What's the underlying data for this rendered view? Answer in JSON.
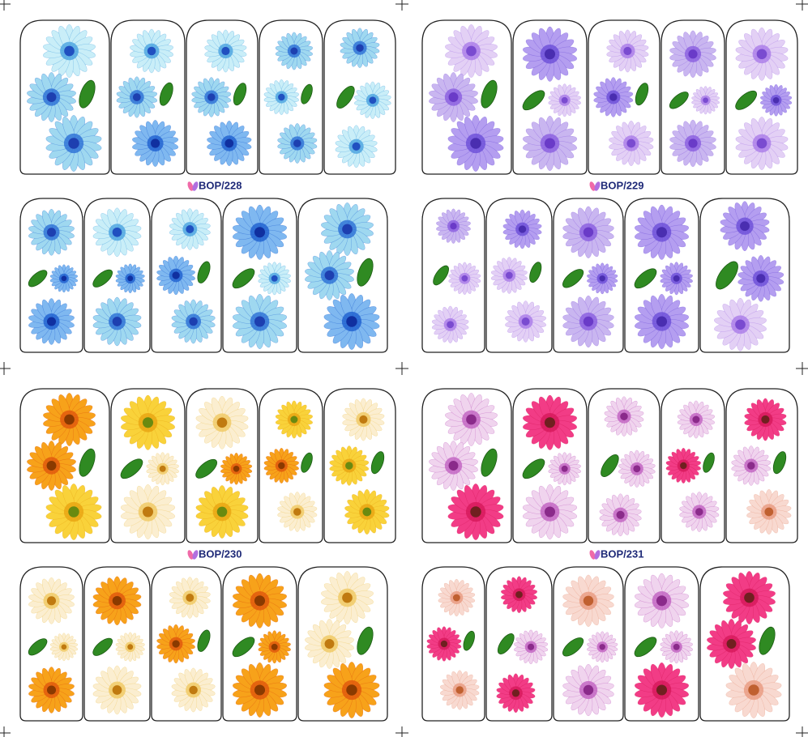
{
  "sheets": [
    {
      "label": "BOP/228"
    },
    {
      "label": "BOP/229"
    },
    {
      "label": "BOP/230"
    },
    {
      "label": "BOP/231"
    }
  ]
}
